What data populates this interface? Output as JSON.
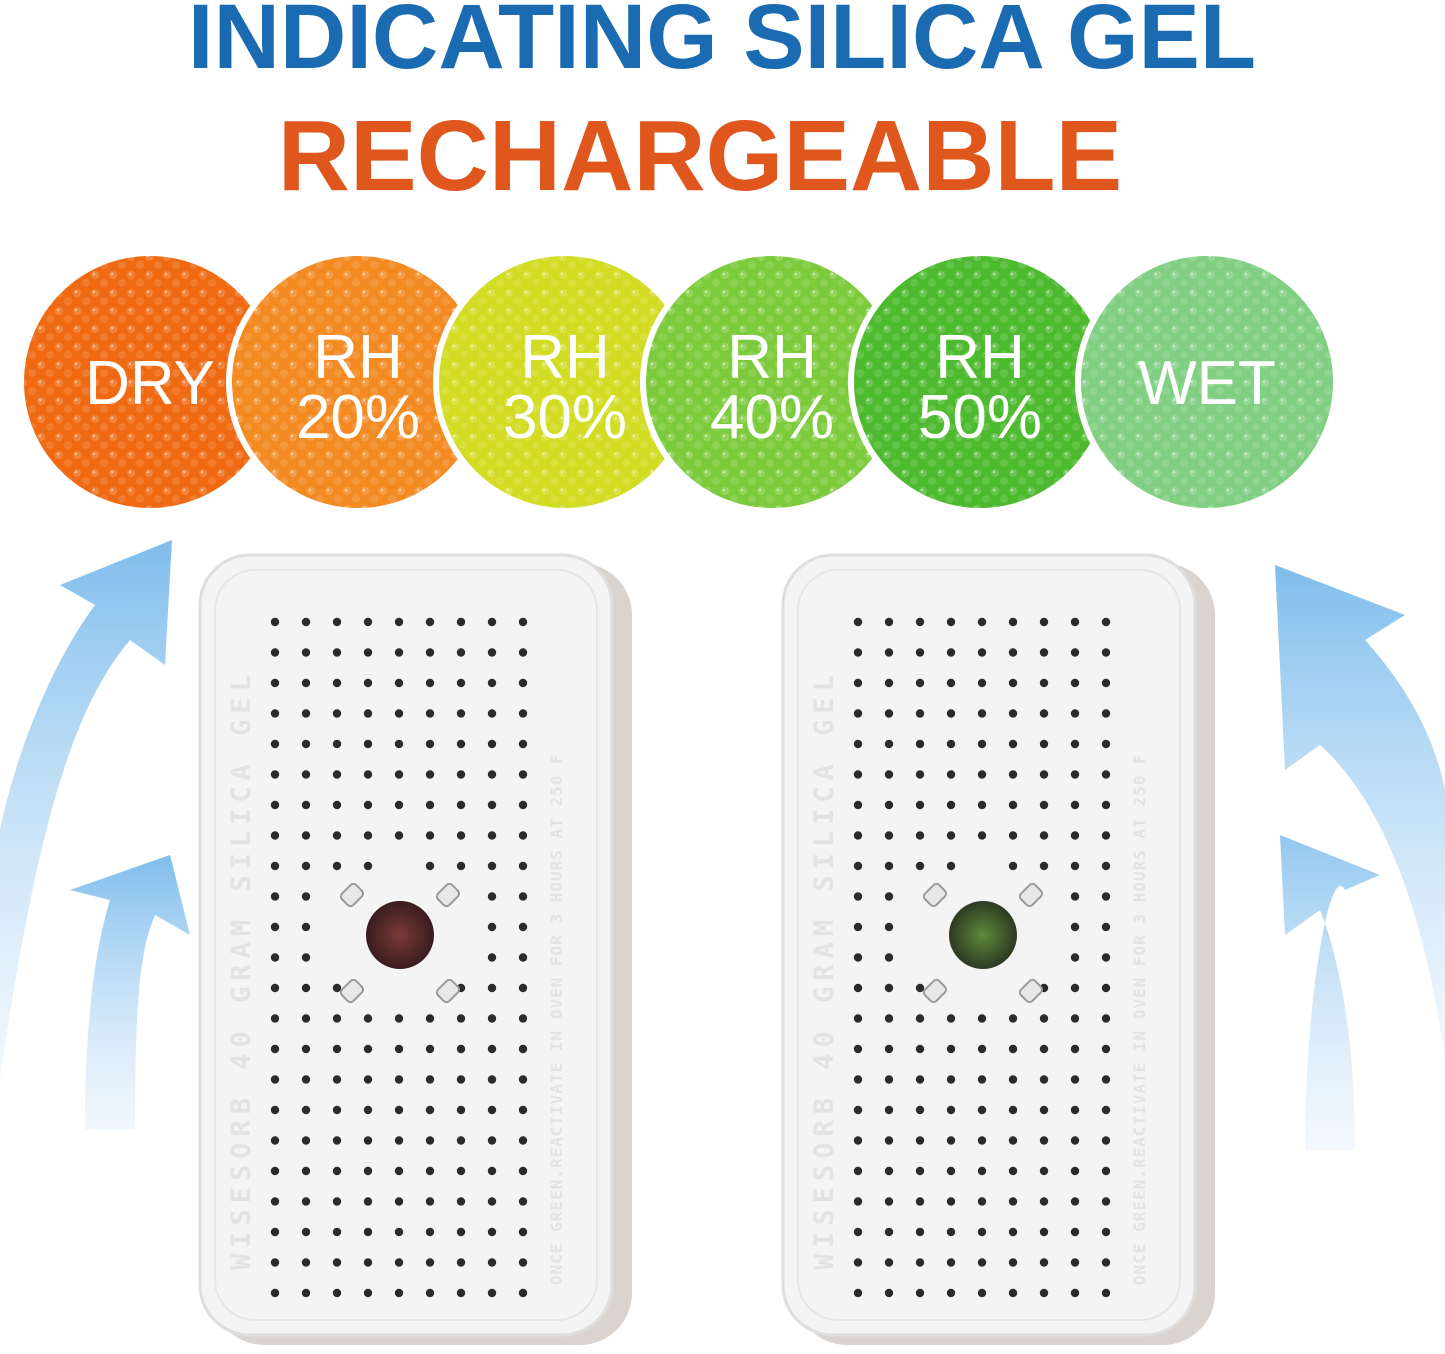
{
  "header": {
    "title_line1": "INDICATING SILICA GEL",
    "title_line2": "RECHARGEABLE"
  },
  "indicator_circles": [
    {
      "lines": [
        "DRY"
      ]
    },
    {
      "lines": [
        "RH",
        "20%"
      ]
    },
    {
      "lines": [
        "RH",
        "30%"
      ]
    },
    {
      "lines": [
        "RH",
        "40%"
      ]
    },
    {
      "lines": [
        "RH",
        "50%"
      ]
    },
    {
      "lines": [
        "WET"
      ]
    }
  ],
  "canisters": [
    {
      "brand_text": "WISESORB 40 GRAM SILICA GEL",
      "instruction_text": "ONCE GREEN.REACTIVATE IN OVEN FOR 3 HOURS AT 250 F"
    },
    {
      "brand_text": "WISESORB 40 GRAM SILICA GEL",
      "instruction_text": "ONCE GREEN.REACTIVATE IN OVEN FOR 3 HOURS AT 250 F"
    }
  ]
}
